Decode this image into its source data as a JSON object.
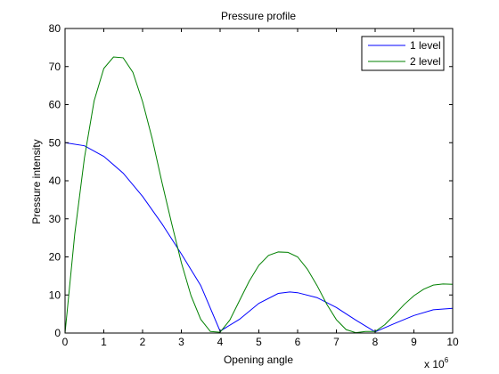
{
  "chart_data": {
    "type": "line",
    "title": "Pressure profile",
    "xlabel": "Opening angle",
    "ylabel": "Pressure intensity",
    "x_multiplier_text": "x 10",
    "x_multiplier_exponent": "6",
    "xlim": [
      0,
      10
    ],
    "ylim": [
      0,
      80
    ],
    "xticks": [
      "0",
      "1",
      "2",
      "3",
      "4",
      "5",
      "6",
      "7",
      "8",
      "9",
      "10"
    ],
    "yticks": [
      "0",
      "10",
      "20",
      "30",
      "40",
      "50",
      "60",
      "70",
      "80"
    ],
    "grid": false,
    "legend_position": "top-right",
    "series": [
      {
        "name": "1 level",
        "color": "#0000ff",
        "x": [
          0,
          0.5,
          1,
          1.5,
          2,
          2.5,
          3,
          3.5,
          4,
          4.5,
          5,
          5.5,
          5.8,
          6,
          6.5,
          7,
          7.5,
          8,
          8.5,
          9,
          9.5,
          10
        ],
        "y": [
          50,
          49.2,
          46.4,
          42,
          35.9,
          28.7,
          20.8,
          12.5,
          0.5,
          3.6,
          7.8,
          10.4,
          10.8,
          10.6,
          9.3,
          6.7,
          3.4,
          0.3,
          2.5,
          4.6,
          6.1,
          6.5
        ]
      },
      {
        "name": "2 level",
        "color": "#008000",
        "x": [
          0,
          0.25,
          0.5,
          0.75,
          1,
          1.25,
          1.5,
          1.75,
          2,
          2.25,
          2.5,
          2.75,
          3,
          3.25,
          3.5,
          3.75,
          4,
          4.25,
          4.5,
          4.75,
          5,
          5.25,
          5.5,
          5.75,
          6,
          6.25,
          6.5,
          6.75,
          7,
          7.25,
          7.5,
          7.75,
          8,
          8.25,
          8.5,
          8.75,
          9,
          9.25,
          9.5,
          9.75,
          10
        ],
        "y": [
          0,
          26,
          46,
          61,
          69.5,
          72.5,
          72.3,
          68.5,
          60.8,
          51,
          39.6,
          28.8,
          18.5,
          9.8,
          3.6,
          0.4,
          0.2,
          3.4,
          8.5,
          13.6,
          17.8,
          20.4,
          21.3,
          21.2,
          20,
          16.8,
          12.5,
          7.6,
          3.5,
          0.9,
          0.1,
          0.4,
          0.4,
          2.2,
          4.8,
          7.5,
          9.8,
          11.5,
          12.6,
          12.9,
          12.8
        ]
      }
    ]
  }
}
